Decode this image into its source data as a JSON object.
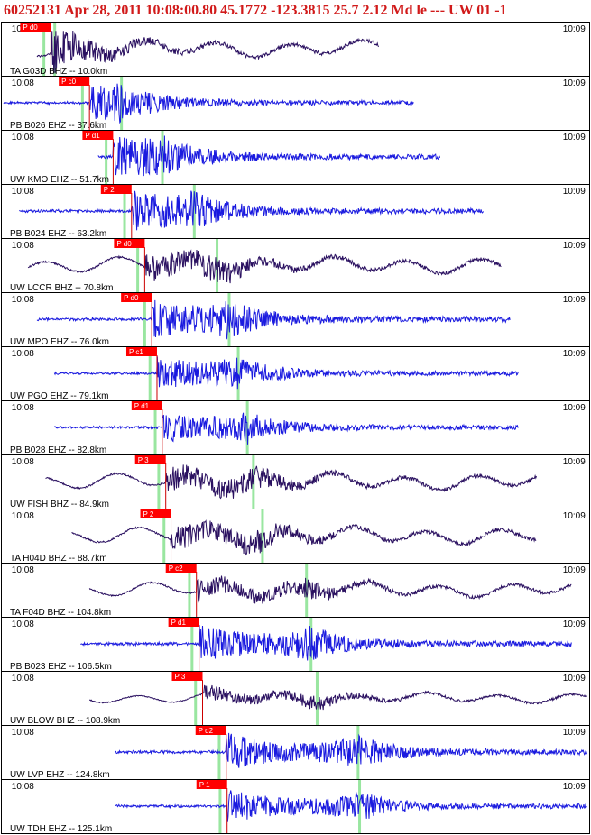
{
  "header": {
    "title": "60252131 Apr 28, 2011 10:08:00.80    45.1772 -123.3815 25.7 2.12 Md le --- UW 01  -1"
  },
  "chart_data": {
    "type": "seismogram",
    "event_id": "60252131",
    "origin": "Apr 28, 2011 10:08:00.80",
    "latitude": 45.1772,
    "longitude": -123.3815,
    "depth_km": 25.7,
    "magnitude": "2.12 Md",
    "time_ticks": [
      "10:08",
      "10:09"
    ],
    "time_range_s": [
      -5,
      62
    ],
    "traces": [
      {
        "label": "TA G03D BHZ -- 10.0km",
        "dist_km": 10.0,
        "pick": "P d0",
        "pick_s": 0.6,
        "color": "#2a1060",
        "trace_s": [
          -1,
          38
        ],
        "amp": 0.95
      },
      {
        "label": "PB B026 EHZ -- 37.6km",
        "dist_km": 37.6,
        "pick": "P c0",
        "pick_s": 5.0,
        "color": "#1a1adf",
        "trace_s": [
          -6,
          42
        ],
        "amp": 0.75
      },
      {
        "label": "UW KMO EHZ -- 51.7km",
        "dist_km": 51.7,
        "pick": "P d1",
        "pick_s": 7.7,
        "color": "#1a1adf",
        "trace_s": [
          6,
          45
        ],
        "amp": 0.9
      },
      {
        "label": "PB B024 EHZ -- 63.2km",
        "dist_km": 63.2,
        "pick": "P 2",
        "pick_s": 9.8,
        "color": "#1a1adf",
        "trace_s": [
          -3,
          50
        ],
        "amp": 0.9
      },
      {
        "label": "UW LCCR BHZ -- 70.8km",
        "dist_km": 70.8,
        "pick": "P d0",
        "pick_s": 11.3,
        "color": "#2a1060",
        "trace_s": [
          -2,
          52
        ],
        "amp": 0.95
      },
      {
        "label": "UW MPO EHZ -- 76.0km",
        "dist_km": 76.0,
        "pick": "P d0",
        "pick_s": 12.1,
        "color": "#1a1adf",
        "trace_s": [
          -1,
          53
        ],
        "amp": 0.95
      },
      {
        "label": "UW PGO EHZ -- 79.1km",
        "dist_km": 79.1,
        "pick": "P c1",
        "pick_s": 12.7,
        "color": "#1a1adf",
        "trace_s": [
          1,
          54
        ],
        "amp": 0.8
      },
      {
        "label": "PB B028 EHZ -- 82.8km",
        "dist_km": 82.8,
        "pick": "P d1",
        "pick_s": 13.3,
        "color": "#1a1adf",
        "trace_s": [
          1,
          54
        ],
        "amp": 0.8
      },
      {
        "label": "UW FISH BHZ -- 84.9km",
        "dist_km": 84.9,
        "pick": "P 3",
        "pick_s": 13.7,
        "color": "#2a1060",
        "trace_s": [
          0,
          56
        ],
        "amp": 0.95
      },
      {
        "label": "TA H04D BHZ -- 88.7km",
        "dist_km": 88.7,
        "pick": "P 2",
        "pick_s": 14.3,
        "color": "#2a1060",
        "trace_s": [
          3,
          56
        ],
        "amp": 0.95
      },
      {
        "label": "TA F04D BHZ -- 104.8km",
        "dist_km": 104.8,
        "pick": "P c2",
        "pick_s": 17.2,
        "color": "#2a1060",
        "trace_s": [
          5,
          60
        ],
        "amp": 0.85
      },
      {
        "label": "PB B023 EHZ -- 106.5km",
        "dist_km": 106.5,
        "pick": "P d1",
        "pick_s": 17.5,
        "color": "#1a1adf",
        "trace_s": [
          4,
          60
        ],
        "amp": 0.95
      },
      {
        "label": "UW BLOW BHZ -- 108.9km",
        "dist_km": 108.9,
        "pick": "P 3",
        "pick_s": 17.9,
        "color": "#2a1060",
        "trace_s": [
          5,
          62
        ],
        "amp": 0.6
      },
      {
        "label": "UW LVP EHZ -- 124.8km",
        "dist_km": 124.8,
        "pick": "P d2",
        "pick_s": 20.6,
        "color": "#1a1adf",
        "trace_s": [
          8,
          65
        ],
        "amp": 0.95
      },
      {
        "label": "UW TDH EHZ -- 125.1km",
        "dist_km": 125.1,
        "pick": "P 1",
        "pick_s": 20.7,
        "color": "#1a1adf",
        "trace_s": [
          8,
          65
        ],
        "amp": 0.85
      }
    ],
    "colors": {
      "pick_flag": "#ff0000",
      "pick_line": "#cc0000",
      "theory_line": "#99e6a0",
      "frame": "#000000"
    }
  }
}
